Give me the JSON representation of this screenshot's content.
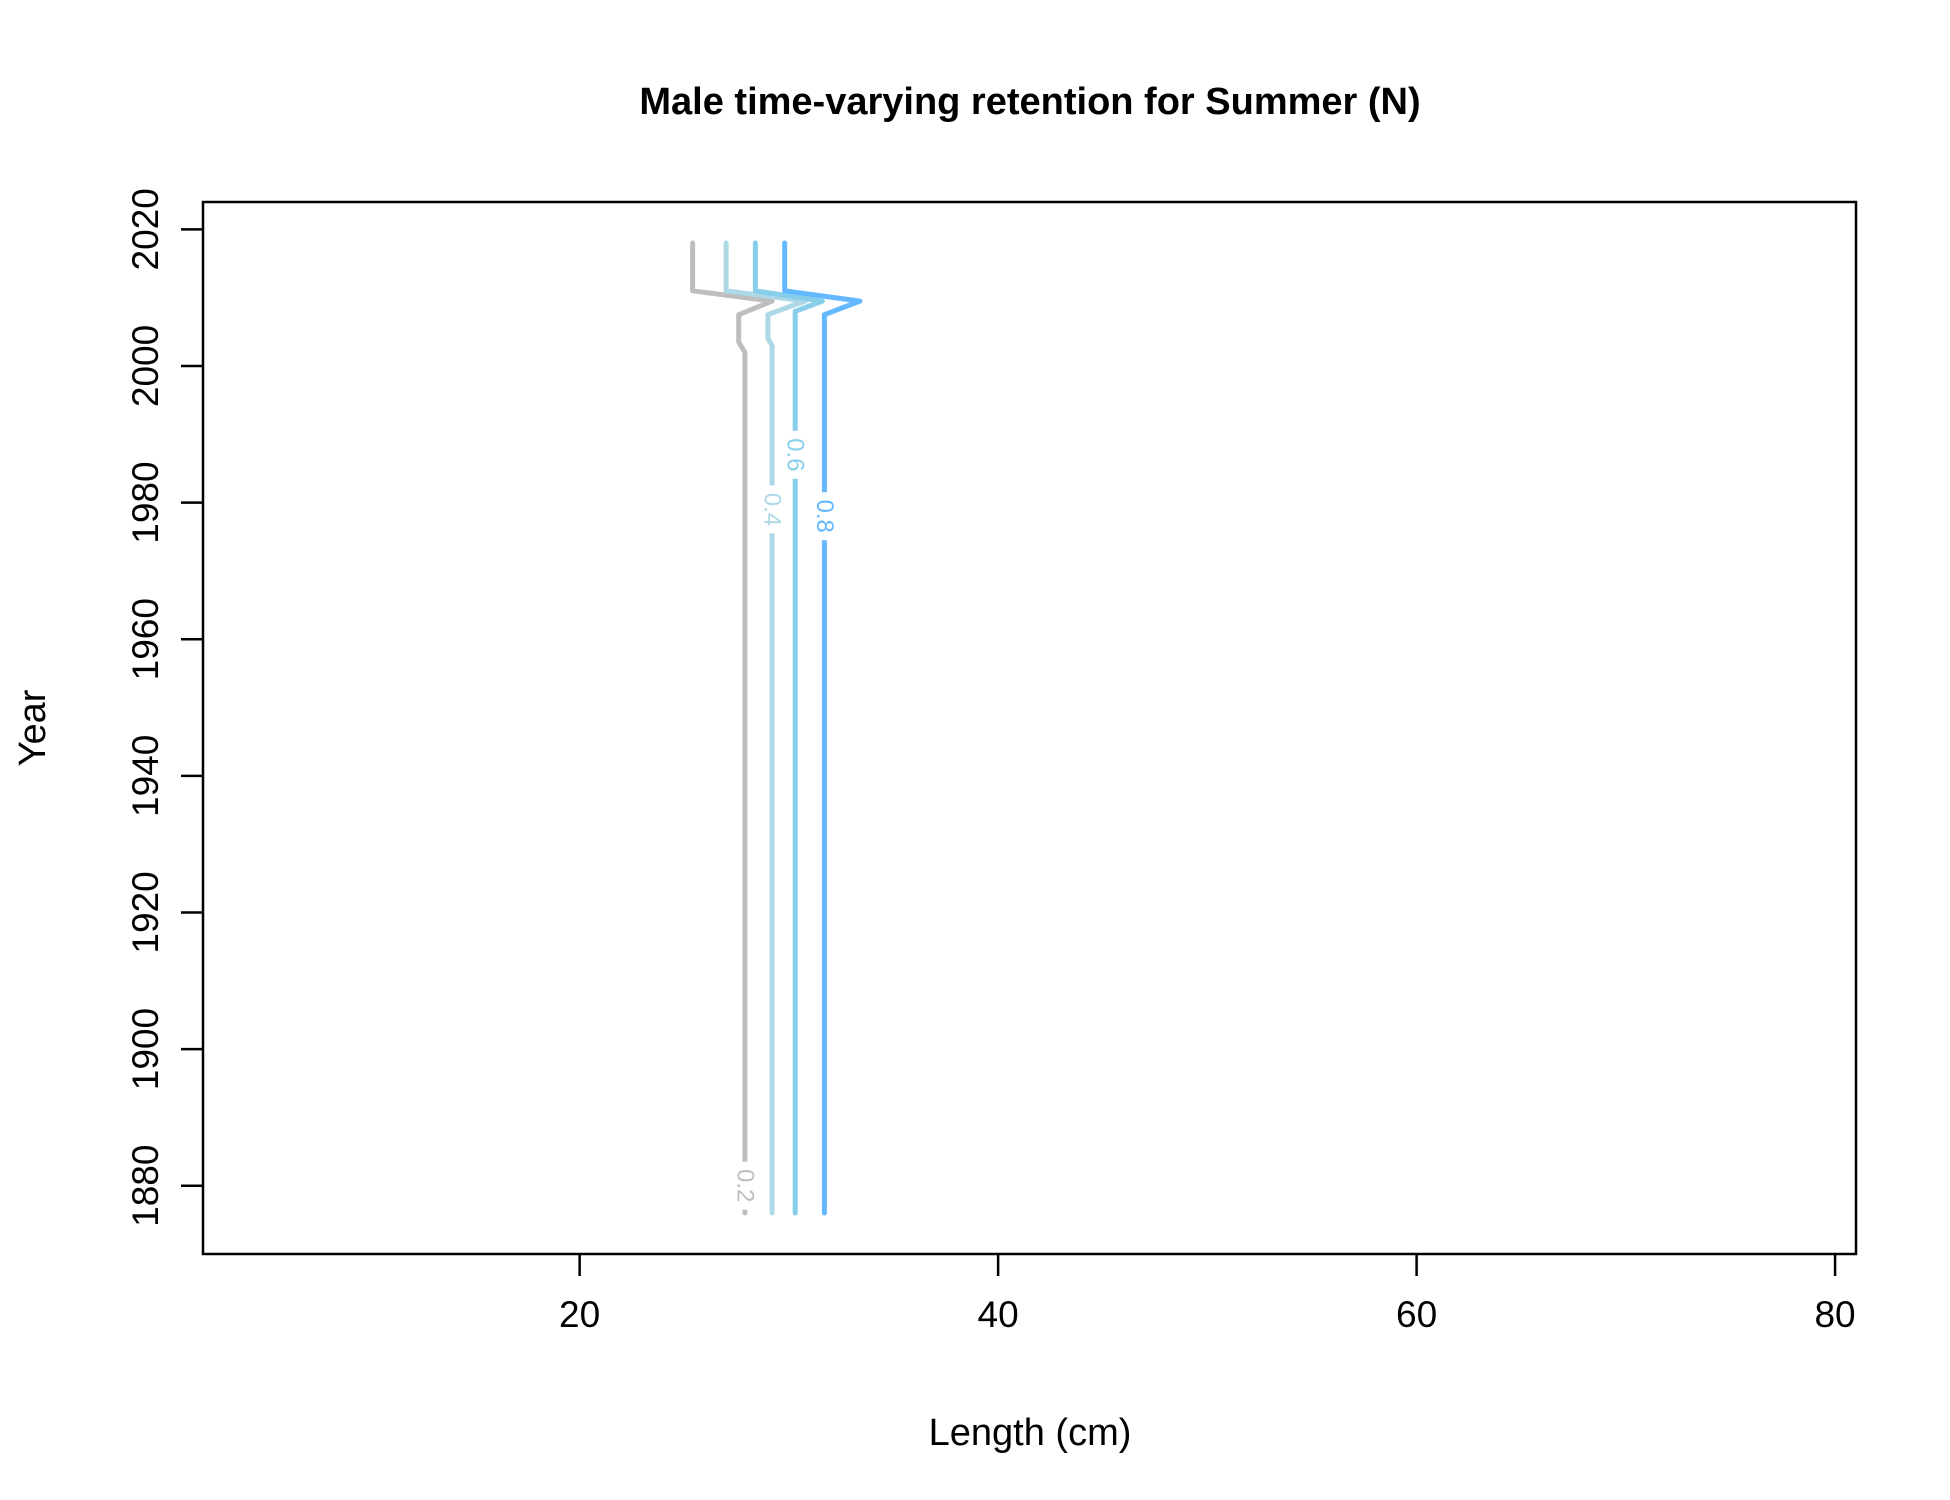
{
  "chart_data": {
    "type": "line",
    "subtype": "contour",
    "title": "Male time-varying retention for Summer (N)",
    "xlabel": "Length (cm)",
    "ylabel": "Year",
    "xlim": [
      2,
      81
    ],
    "ylim": [
      1870,
      2024
    ],
    "xticks": [
      20,
      40,
      60,
      80
    ],
    "yticks": [
      1880,
      1900,
      1920,
      1940,
      1960,
      1980,
      2000,
      2020
    ],
    "grid": false,
    "legend": "none",
    "series": [
      {
        "name": "0.2",
        "color": "#bebebe",
        "label_point": {
          "x": 27.9,
          "y": 1880
        },
        "points": [
          [
            27.9,
            1876
          ],
          [
            27.9,
            2002
          ],
          [
            27.6,
            2003.5
          ],
          [
            27.6,
            2007.5
          ],
          [
            29.2,
            2009.5
          ],
          [
            25.4,
            2011
          ],
          [
            25.4,
            2018
          ]
        ]
      },
      {
        "name": "0.4",
        "color": "#add8e6",
        "label_point": {
          "x": 29.2,
          "y": 1979
        },
        "points": [
          [
            29.2,
            1876
          ],
          [
            29.2,
            2003
          ],
          [
            29.0,
            2004
          ],
          [
            29.0,
            2007.5
          ],
          [
            30.3,
            2009
          ],
          [
            30.8,
            2009.5
          ],
          [
            27.0,
            2011
          ],
          [
            27.0,
            2018
          ]
        ]
      },
      {
        "name": "0.6",
        "color": "#87ceeb",
        "label_point": {
          "x": 30.3,
          "y": 1987
        },
        "points": [
          [
            30.3,
            1876
          ],
          [
            30.3,
            2005.5
          ],
          [
            30.3,
            2008
          ],
          [
            31.6,
            2009.5
          ],
          [
            28.4,
            2011
          ],
          [
            28.4,
            2018
          ]
        ]
      },
      {
        "name": "0.8",
        "color": "#63b8ff",
        "label_point": {
          "x": 31.7,
          "y": 1978
        },
        "points": [
          [
            31.7,
            1876
          ],
          [
            31.7,
            2007.5
          ],
          [
            33.4,
            2009.5
          ],
          [
            29.8,
            2011
          ],
          [
            29.8,
            2018
          ]
        ]
      }
    ]
  }
}
